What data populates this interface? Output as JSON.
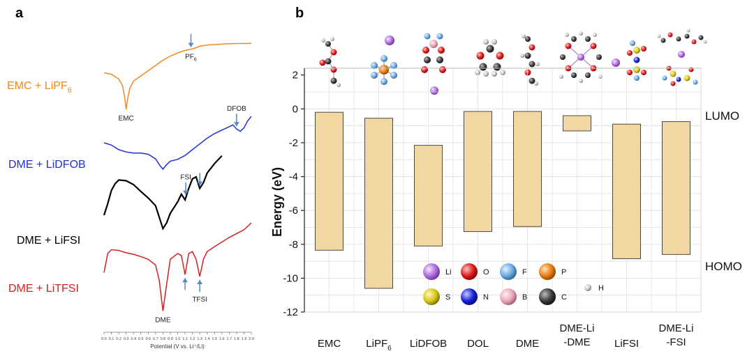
{
  "panel_labels": {
    "a": "a",
    "b": "b"
  },
  "chart_data": [
    {
      "type": "line",
      "panel": "a",
      "title": "",
      "xlabel": "Potential (V vs. Li⁺/Li)",
      "ylabel": "",
      "xlim": [
        0.0,
        2.0
      ],
      "xticks": [
        "0.0",
        "0.1",
        "0.2",
        "0.3",
        "0.4",
        "0.5",
        "0.6",
        "0.7",
        "0.8",
        "0.9",
        "1.0",
        "1.1",
        "1.2",
        "1.3",
        "1.4",
        "1.5",
        "1.6",
        "1.7",
        "1.8",
        "1.9",
        "2.0"
      ],
      "series": [
        {
          "name": "EMC + LiPF6",
          "label_main": "EMC + LiPF",
          "label_sub": "6",
          "color": "#ef8a22",
          "points": [
            [
              0.0,
              -0.15
            ],
            [
              0.1,
              -0.22
            ],
            [
              0.2,
              -0.45
            ],
            [
              0.25,
              -0.75
            ],
            [
              0.28,
              -1.3
            ],
            [
              0.3,
              -1.9
            ],
            [
              0.32,
              -1.4
            ],
            [
              0.35,
              -0.9
            ],
            [
              0.4,
              -0.55
            ],
            [
              0.5,
              -0.3
            ],
            [
              0.6,
              -0.05
            ],
            [
              0.7,
              0.2
            ],
            [
              0.8,
              0.45
            ],
            [
              0.9,
              0.65
            ],
            [
              1.0,
              0.8
            ],
            [
              1.1,
              0.92
            ],
            [
              1.18,
              0.98
            ],
            [
              1.25,
              1.05
            ],
            [
              1.3,
              1.12
            ],
            [
              1.4,
              1.18
            ],
            [
              1.5,
              1.2
            ],
            [
              1.6,
              1.22
            ],
            [
              1.7,
              1.24
            ],
            [
              1.8,
              1.25
            ],
            [
              1.9,
              1.25
            ],
            [
              2.0,
              1.26
            ]
          ],
          "annotations": [
            {
              "text": "EMC",
              "x": 0.3,
              "arrow": false
            },
            {
              "text": "PF",
              "sub": "6",
              "x": 1.18,
              "arrow": true
            }
          ]
        },
        {
          "name": "DME + LiDFOB",
          "label": "DME + LiDFOB",
          "color": "#1f2fd6",
          "points": [
            [
              0.0,
              0.0
            ],
            [
              0.1,
              -0.1
            ],
            [
              0.2,
              -0.3
            ],
            [
              0.3,
              -0.4
            ],
            [
              0.4,
              -0.45
            ],
            [
              0.5,
              -0.45
            ],
            [
              0.6,
              -0.5
            ],
            [
              0.7,
              -0.7
            ],
            [
              0.75,
              -0.95
            ],
            [
              0.8,
              -1.15
            ],
            [
              0.85,
              -0.95
            ],
            [
              0.9,
              -0.8
            ],
            [
              1.0,
              -0.72
            ],
            [
              1.1,
              -0.55
            ],
            [
              1.2,
              -0.3
            ],
            [
              1.3,
              -0.05
            ],
            [
              1.4,
              0.2
            ],
            [
              1.5,
              0.4
            ],
            [
              1.6,
              0.55
            ],
            [
              1.7,
              0.7
            ],
            [
              1.75,
              0.78
            ],
            [
              1.8,
              0.6
            ],
            [
              1.85,
              0.5
            ],
            [
              1.9,
              0.65
            ],
            [
              1.95,
              0.95
            ],
            [
              2.0,
              1.15
            ]
          ],
          "annotations": [
            {
              "text": "DFOB",
              "x": 1.8,
              "arrow": true
            }
          ]
        },
        {
          "name": "DME + LiFSI",
          "label": "DME + LiFSI",
          "color": "#000000",
          "points": [
            [
              0.0,
              -0.2
            ],
            [
              0.05,
              0.1
            ],
            [
              0.1,
              0.45
            ],
            [
              0.15,
              0.62
            ],
            [
              0.2,
              0.72
            ],
            [
              0.3,
              0.7
            ],
            [
              0.4,
              0.6
            ],
            [
              0.5,
              0.42
            ],
            [
              0.6,
              0.25
            ],
            [
              0.7,
              0.05
            ],
            [
              0.75,
              -0.25
            ],
            [
              0.8,
              -0.55
            ],
            [
              0.85,
              -0.4
            ],
            [
              0.9,
              -0.15
            ],
            [
              1.0,
              0.15
            ],
            [
              1.05,
              0.35
            ],
            [
              1.1,
              0.2
            ],
            [
              1.15,
              0.5
            ],
            [
              1.2,
              0.75
            ],
            [
              1.25,
              0.8
            ],
            [
              1.3,
              0.5
            ],
            [
              1.35,
              0.65
            ],
            [
              1.4,
              0.9
            ],
            [
              1.5,
              1.15
            ],
            [
              1.6,
              1.35
            ]
          ],
          "annotations": [
            {
              "text": "FSI",
              "x": 1.11,
              "arrow": true
            },
            {
              "text": "",
              "x": 1.3,
              "arrow": true
            }
          ]
        },
        {
          "name": "DME + LiTFSI",
          "label": "DME + LiTFSI",
          "color": "#d42020",
          "points": [
            [
              0.0,
              -0.3
            ],
            [
              0.05,
              0.2
            ],
            [
              0.1,
              0.3
            ],
            [
              0.2,
              0.28
            ],
            [
              0.3,
              0.22
            ],
            [
              0.4,
              0.18
            ],
            [
              0.5,
              0.12
            ],
            [
              0.6,
              0.05
            ],
            [
              0.7,
              -0.1
            ],
            [
              0.75,
              -0.5
            ],
            [
              0.8,
              -1.3
            ],
            [
              0.85,
              -0.6
            ],
            [
              0.9,
              0.05
            ],
            [
              1.0,
              0.2
            ],
            [
              1.05,
              0.15
            ],
            [
              1.1,
              -0.35
            ],
            [
              1.15,
              0.2
            ],
            [
              1.2,
              0.25
            ],
            [
              1.25,
              0.05
            ],
            [
              1.3,
              -0.4
            ],
            [
              1.35,
              0.05
            ],
            [
              1.4,
              0.25
            ],
            [
              1.5,
              0.38
            ],
            [
              1.6,
              0.5
            ],
            [
              1.7,
              0.62
            ],
            [
              1.8,
              0.72
            ],
            [
              1.9,
              0.82
            ],
            [
              2.0,
              1.0
            ]
          ],
          "annotations": [
            {
              "text": "DME",
              "x": 0.8,
              "arrow": false
            },
            {
              "text": "TFSI",
              "x": 1.3,
              "arrow": true
            },
            {
              "text": "",
              "x": 1.1,
              "arrow": true
            }
          ]
        }
      ]
    },
    {
      "type": "bar",
      "panel": "b",
      "title": "",
      "xlabel": "",
      "ylabel": "Energy (eV)",
      "ylim": [
        -12,
        2.4
      ],
      "yticks": [
        2,
        0,
        -2,
        -4,
        -6,
        -8,
        -10,
        -12
      ],
      "categories": [
        "EMC",
        "LiPF6",
        "LiDFOB",
        "DOL",
        "DME",
        "DME-Li-DME",
        "LiFSI",
        "DME-Li-FSI"
      ],
      "category_labels": [
        {
          "main": "EMC"
        },
        {
          "main": "LiPF",
          "sub": "6"
        },
        {
          "main": "LiDFOB"
        },
        {
          "main": "DOL"
        },
        {
          "main": "DME"
        },
        {
          "main": "DME-Li",
          "line2": "-DME"
        },
        {
          "main": "LiFSI"
        },
        {
          "main": "DME-Li",
          "line2": "-FSI"
        }
      ],
      "series": [
        {
          "name": "LUMO",
          "values": [
            -0.2,
            -0.55,
            -2.15,
            -0.15,
            -0.15,
            -0.4,
            -0.9,
            -0.75
          ]
        },
        {
          "name": "HOMO",
          "values": [
            -8.35,
            -10.6,
            -8.1,
            -7.25,
            -6.95,
            -1.3,
            -8.85,
            -8.6
          ]
        }
      ],
      "bar_color": "#f2d7a3",
      "bar_edge": "#4a4a4a",
      "level_labels": {
        "lumo": "LUMO",
        "homo": "HOMO"
      },
      "grid": true,
      "legend": {
        "placement": "bottom-center",
        "items": [
          {
            "symbol": "Li",
            "color": "#b06bdc"
          },
          {
            "symbol": "O",
            "color": "#e01818"
          },
          {
            "symbol": "F",
            "color": "#6aa8e0"
          },
          {
            "symbol": "P",
            "color": "#e87c10"
          },
          {
            "symbol": "S",
            "color": "#d6c61a"
          },
          {
            "symbol": "N",
            "color": "#1520d8"
          },
          {
            "symbol": "B",
            "color": "#e8a8b8"
          },
          {
            "symbol": "C",
            "color": "#3a3a3a"
          },
          {
            "symbol": "H",
            "color": "#c8c8c8"
          }
        ]
      }
    }
  ]
}
